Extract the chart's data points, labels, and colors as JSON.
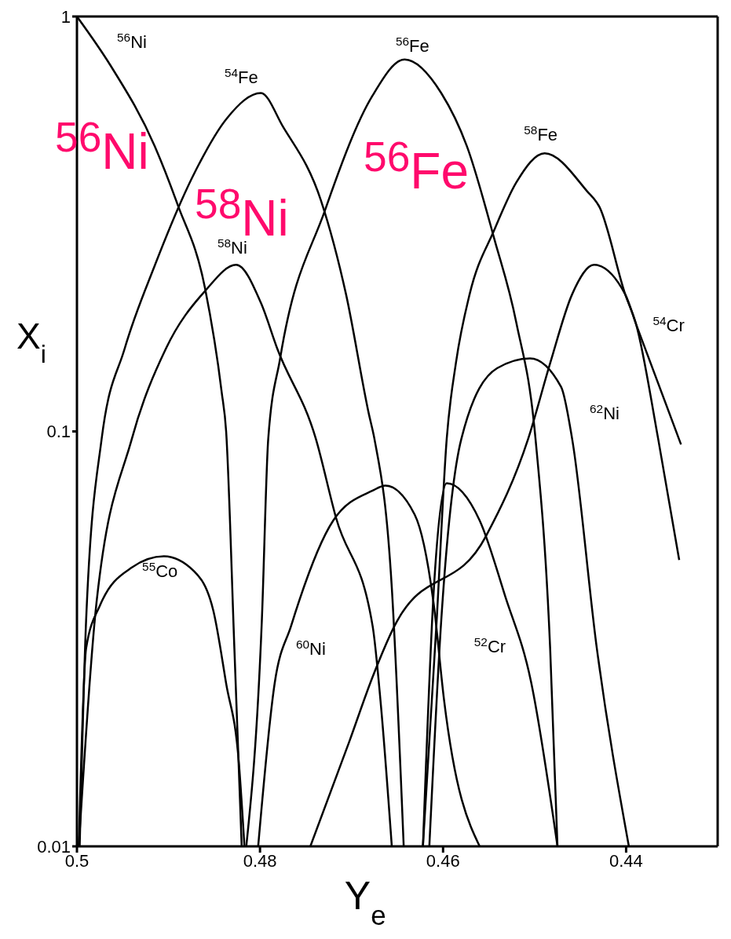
{
  "chart_data": {
    "type": "line",
    "xlabel": "Y$_{e}$",
    "ylabel": "X$_{i}$",
    "log": "y",
    "marker": "none",
    "line_style": "solid",
    "xlim": [
      0.5,
      0.43
    ],
    "xticks": [
      0.5,
      0.48,
      0.46,
      0.44
    ],
    "ylim": [
      0.01,
      1
    ],
    "yticks": [
      0.01,
      0.1,
      1
    ],
    "annotations": [
      "$^{56}$Ni",
      "$^{58}$Ni",
      "$^{56}$Fe"
    ],
    "series": [
      {
        "name": "$^{56}$Ni",
        "color": "#000000",
        "x": [
          0.5,
          0.4963,
          0.4915,
          0.489,
          0.486,
          0.4842,
          0.4837,
          0.4828,
          0.482
        ],
        "values": [
          1,
          0.76,
          0.487,
          0.352,
          0.221,
          0.125,
          0.1,
          0.03,
          0.01
        ]
      },
      {
        "name": "$^{54}$Fe",
        "color": "#000000",
        "x": [
          0.4997,
          0.499,
          0.4973,
          0.4948,
          0.4915,
          0.4872,
          0.4836,
          0.4799,
          0.4775,
          0.4733,
          0.4706,
          0.4681,
          0.4675,
          0.4656,
          0.4643
        ],
        "values": [
          0.01,
          0.035,
          0.096,
          0.158,
          0.251,
          0.418,
          0.569,
          0.654,
          0.543,
          0.358,
          0.214,
          0.11,
          0.096,
          0.042,
          0.01
        ]
      },
      {
        "name": "$^{58}$Ni",
        "color": "#000000",
        "x": [
          0.4998,
          0.4979,
          0.494,
          0.4903,
          0.486,
          0.4826,
          0.4799,
          0.4781,
          0.4739,
          0.4717,
          0.4677,
          0.4668,
          0.4656
        ],
        "values": [
          0.01,
          0.038,
          0.096,
          0.158,
          0.218,
          0.252,
          0.204,
          0.158,
          0.096,
          0.062,
          0.034,
          0.022,
          0.01
        ]
      },
      {
        "name": "$^{55}$Co",
        "color": "#000000",
        "x": [
          0.4998,
          0.499,
          0.4975,
          0.494,
          0.4905,
          0.4872,
          0.4851,
          0.4837,
          0.4823,
          0.4817
        ],
        "values": [
          0.01,
          0.03,
          0.038,
          0.047,
          0.05,
          0.046,
          0.037,
          0.0247,
          0.0158,
          0.01
        ]
      },
      {
        "name": "$^{56}$Fe",
        "color": "#000000",
        "x": [
          0.4815,
          0.4798,
          0.4791,
          0.4778,
          0.4729,
          0.4677,
          0.4642,
          0.4602,
          0.4574,
          0.4544,
          0.452,
          0.4499,
          0.4483,
          0.4475
        ],
        "values": [
          0.01,
          0.035,
          0.096,
          0.15,
          0.341,
          0.645,
          0.788,
          0.654,
          0.487,
          0.291,
          0.183,
          0.096,
          0.03,
          0.01
        ]
      },
      {
        "name": "$^{60}$Ni",
        "color": "#000000",
        "x": [
          0.4802,
          0.4784,
          0.4766,
          0.472,
          0.4677,
          0.4663,
          0.4631,
          0.461,
          0.4599,
          0.456
        ],
        "values": [
          0.01,
          0.0247,
          0.034,
          0.061,
          0.072,
          0.074,
          0.063,
          0.038,
          0.0226,
          0.01
        ]
      },
      {
        "name": "$^{58}$Fe",
        "color": "#000000",
        "x": [
          0.4622,
          0.4607,
          0.4596,
          0.4586,
          0.4571,
          0.4544,
          0.452,
          0.4489,
          0.4443,
          0.4429,
          0.4401,
          0.4389,
          0.4365,
          0.4342
        ],
        "values": [
          0.01,
          0.035,
          0.096,
          0.146,
          0.214,
          0.306,
          0.398,
          0.468,
          0.38,
          0.347,
          0.214,
          0.181,
          0.096,
          0.049
        ]
      },
      {
        "name": "$^{52}$Cr",
        "color": "#000000",
        "x": [
          0.4622,
          0.461,
          0.4596,
          0.456,
          0.4532,
          0.4504,
          0.4475
        ],
        "values": [
          0.01,
          0.042,
          0.075,
          0.061,
          0.04,
          0.025,
          0.01
        ]
      },
      {
        "name": "$^{62}$Ni",
        "color": "#000000",
        "x": [
          0.4615,
          0.4602,
          0.458,
          0.4541,
          0.4505,
          0.4471,
          0.4459,
          0.4432,
          0.4397
        ],
        "values": [
          0.01,
          0.035,
          0.096,
          0.142,
          0.15,
          0.128,
          0.096,
          0.03,
          0.01
        ]
      },
      {
        "name": "$^{54}$Cr",
        "color": "#000000",
        "x": [
          0.4745,
          0.4702,
          0.4677,
          0.4653,
          0.4553,
          0.4507,
          0.4483,
          0.4459,
          0.4435,
          0.4401,
          0.4389,
          0.434
        ],
        "values": [
          0.01,
          0.018,
          0.0256,
          0.034,
          0.056,
          0.096,
          0.146,
          0.214,
          0.252,
          0.214,
          0.181,
          0.093
        ]
      }
    ]
  }
}
